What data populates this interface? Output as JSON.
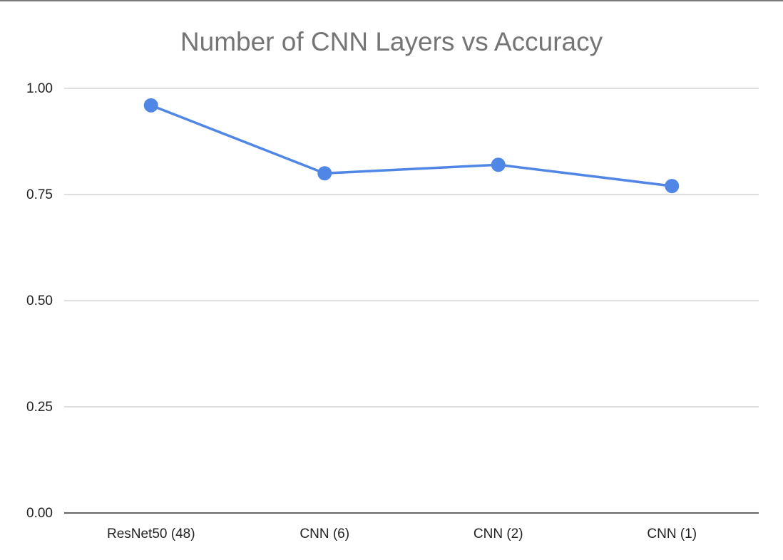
{
  "chart_data": {
    "type": "line",
    "title": "Number of CNN Layers vs Accuracy",
    "xlabel": "",
    "ylabel": "",
    "categories": [
      "ResNet50 (48)",
      "CNN (6)",
      "CNN (2)",
      "CNN (1)"
    ],
    "series": [
      {
        "values": [
          0.96,
          0.8,
          0.82,
          0.77
        ]
      }
    ],
    "ylim": [
      0,
      1
    ],
    "yticks": [
      "0.00",
      "0.25",
      "0.50",
      "0.75",
      "1.00"
    ],
    "grid": true,
    "legend": "none",
    "colors": {
      "series": "#5086e6",
      "grid": "#cccccc",
      "axis": "#333333"
    }
  }
}
